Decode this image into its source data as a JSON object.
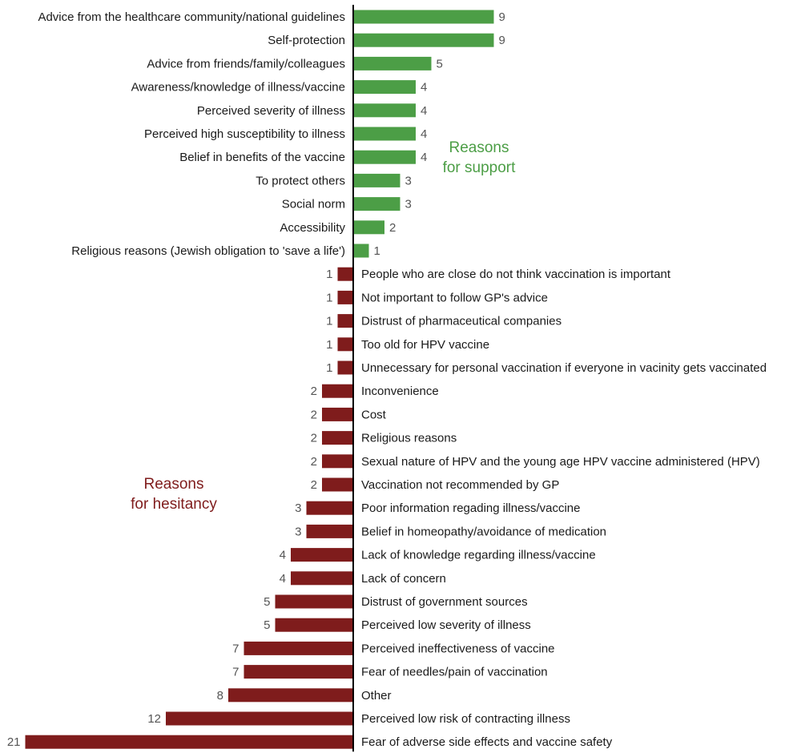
{
  "chart_data": {
    "type": "bar",
    "orientation": "diverging-horizontal",
    "colors": {
      "support": "#4c9e46",
      "hesitancy": "#7f1c1c"
    },
    "groups": {
      "support": {
        "label_line1": "Reasons",
        "label_line2": "for support",
        "items": [
          {
            "label": "Advice from the healthcare community/national guidelines",
            "value": 9
          },
          {
            "label": "Self-protection",
            "value": 9
          },
          {
            "label": "Advice from friends/family/colleagues",
            "value": 5
          },
          {
            "label": "Awareness/knowledge of illness/vaccine",
            "value": 4
          },
          {
            "label": "Perceived severity of illness",
            "value": 4
          },
          {
            "label": "Perceived high susceptibility to illness",
            "value": 4
          },
          {
            "label": "Belief in benefits of the vaccine",
            "value": 4
          },
          {
            "label": "To protect others",
            "value": 3
          },
          {
            "label": "Social norm",
            "value": 3
          },
          {
            "label": "Accessibility",
            "value": 2
          },
          {
            "label": "Religious reasons (Jewish obligation to 'save a life')",
            "value": 1
          }
        ]
      },
      "hesitancy": {
        "label_line1": "Reasons",
        "label_line2": "for hesitancy",
        "items": [
          {
            "label": "People who are close do not think vaccination is important",
            "value": 1
          },
          {
            "label": "Not important to follow GP's advice",
            "value": 1
          },
          {
            "label": "Distrust of pharmaceutical companies",
            "value": 1
          },
          {
            "label": "Too old for HPV vaccine",
            "value": 1
          },
          {
            "label": "Unnecessary for personal vaccination if everyone in vacinity gets vaccinated",
            "value": 1
          },
          {
            "label": "Inconvenience",
            "value": 2
          },
          {
            "label": "Cost",
            "value": 2
          },
          {
            "label": "Religious reasons",
            "value": 2
          },
          {
            "label": "Sexual nature of HPV and the young age HPV vaccine administered (HPV)",
            "value": 2
          },
          {
            "label": "Vaccination not recommended by GP",
            "value": 2
          },
          {
            "label": "Poor information regading illness/vaccine",
            "value": 3
          },
          {
            "label": "Belief in homeopathy/avoidance of medication",
            "value": 3
          },
          {
            "label": "Lack of knowledge regarding illness/vaccine",
            "value": 4
          },
          {
            "label": "Lack of concern",
            "value": 4
          },
          {
            "label": "Distrust of government sources",
            "value": 5
          },
          {
            "label": "Perceived low severity of illness",
            "value": 5
          },
          {
            "label": "Perceived ineffectiveness of vaccine",
            "value": 7
          },
          {
            "label": "Fear of needles/pain of vaccination",
            "value": 7
          },
          {
            "label": "Other",
            "value": 8
          },
          {
            "label": "Perceived low risk of contracting illness",
            "value": 12
          },
          {
            "label": "Fear of adverse side effects and vaccine safety",
            "value": 21
          }
        ]
      }
    }
  }
}
